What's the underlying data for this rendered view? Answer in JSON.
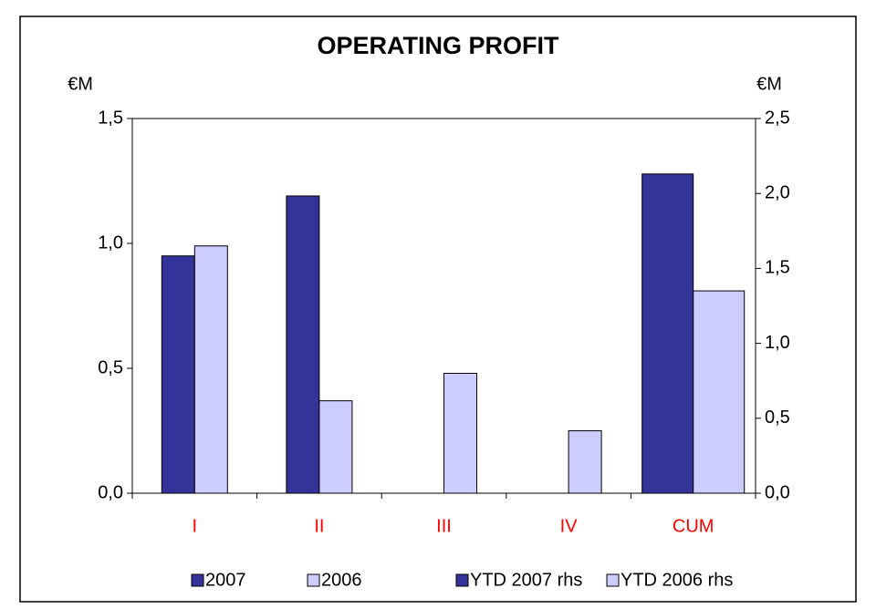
{
  "chart_data": {
    "type": "bar",
    "title": "OPERATING PROFIT",
    "y_unit": "€M",
    "y2_unit": "€M",
    "categories": [
      "I",
      "II",
      "III",
      "IV",
      "CUM"
    ],
    "category_color": "#ff0000",
    "series": [
      {
        "name": "2007",
        "color": "#333399",
        "values": [
          0.95,
          1.19,
          null,
          null,
          null
        ]
      },
      {
        "name": "2006",
        "color": "#ccccff",
        "values": [
          0.99,
          0.37,
          0.48,
          0.25,
          null
        ]
      },
      {
        "name": "YTD 2007 rhs",
        "color": "#333399",
        "axis": "y2",
        "values": [
          null,
          null,
          null,
          null,
          2.13
        ]
      },
      {
        "name": "YTD 2006 rhs",
        "color": "#ccccff",
        "axis": "y2",
        "values": [
          null,
          null,
          null,
          null,
          1.35
        ]
      }
    ],
    "ylim": [
      0,
      1.5
    ],
    "yticks": [
      {
        "value": 0,
        "label": "0,0"
      },
      {
        "value": 0.5,
        "label": "0,5"
      },
      {
        "value": 1,
        "label": "1,0"
      },
      {
        "value": 1.5,
        "label": "1,5"
      }
    ],
    "y2lim": [
      0,
      2.5
    ],
    "y2ticks": [
      {
        "value": 0,
        "label": "0,0"
      },
      {
        "value": 0.5,
        "label": "0,5"
      },
      {
        "value": 1,
        "label": "1,0"
      },
      {
        "value": 1.5,
        "label": "1,5"
      },
      {
        "value": 2,
        "label": "2,0"
      },
      {
        "value": 2.5,
        "label": "2,5"
      }
    ],
    "grid": false,
    "legend": "bottom"
  }
}
